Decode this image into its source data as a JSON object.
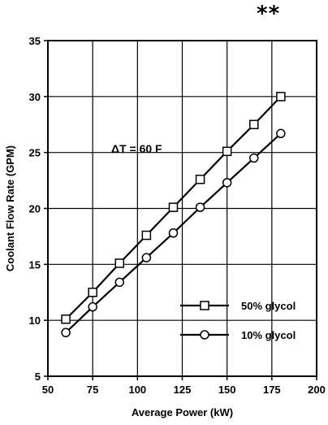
{
  "header": {
    "mark": "**"
  },
  "chart_data": {
    "type": "line",
    "xlabel": "Average Power (kW)",
    "ylabel": "Coolant Flow Rate (GPM)",
    "xlim": [
      50,
      200
    ],
    "ylim": [
      5,
      35
    ],
    "x_ticks": [
      "50",
      "75",
      "100",
      "125",
      "150",
      "175",
      "200"
    ],
    "y_ticks": [
      "5",
      "10",
      "15",
      "20",
      "25",
      "30",
      "35"
    ],
    "grid": true,
    "annotation": "ΔT = 60 F",
    "legend_position": "bottom-right",
    "series": [
      {
        "name": "50% glycol",
        "marker": "square",
        "x": [
          60,
          75,
          90,
          105,
          120,
          135,
          150,
          165,
          180
        ],
        "y": [
          10.1,
          12.5,
          15.1,
          17.6,
          20.1,
          22.6,
          25.1,
          27.5,
          30.0
        ]
      },
      {
        "name": "10% glycol",
        "marker": "circle",
        "x": [
          60,
          75,
          90,
          105,
          120,
          135,
          150,
          165,
          180
        ],
        "y": [
          8.9,
          11.2,
          13.4,
          15.6,
          17.8,
          20.1,
          22.3,
          24.5,
          26.7
        ]
      }
    ]
  }
}
